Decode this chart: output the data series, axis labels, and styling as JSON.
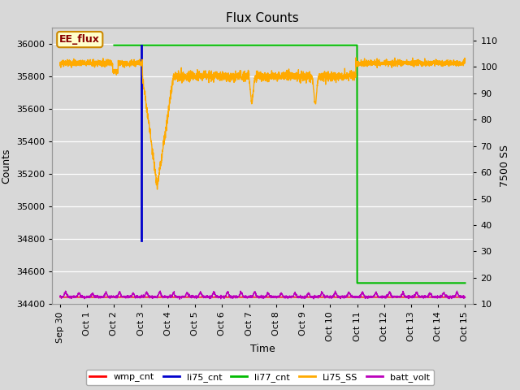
{
  "title": "Flux Counts",
  "xlabel": "Time",
  "ylabel_left": "Counts",
  "ylabel_right": "7500 SS",
  "annotation_text": "EE_flux",
  "annotation_bg": "#ffffcc",
  "annotation_border": "#cc8800",
  "annotation_text_color": "#880000",
  "xlim_days": [
    -0.3,
    15.3
  ],
  "ylim_left": [
    34400,
    36100
  ],
  "ylim_right": [
    10,
    115
  ],
  "yticks_left": [
    34400,
    34600,
    34800,
    35000,
    35200,
    35400,
    35600,
    35800,
    36000
  ],
  "yticks_right": [
    10,
    20,
    30,
    40,
    50,
    60,
    70,
    80,
    90,
    100,
    110
  ],
  "xtick_labels": [
    "Sep 30",
    "Oct 1",
    "Oct 2",
    "Oct 3",
    "Oct 4",
    "Oct 5",
    "Oct 6",
    "Oct 7",
    "Oct 8",
    "Oct 9",
    "Oct 10",
    "Oct 11",
    "Oct 12",
    "Oct 13",
    "Oct 14",
    "Oct 15"
  ],
  "xtick_positions": [
    0,
    1,
    2,
    3,
    4,
    5,
    6,
    7,
    8,
    9,
    10,
    11,
    12,
    13,
    14,
    15
  ],
  "fig_bg_color": "#d8d8d8",
  "plot_bg_color": "#d8d8d8",
  "grid_color": "#ffffff",
  "colors": {
    "wmp_cnt": "#ff0000",
    "li75_cnt": "#0000cc",
    "li77_cnt": "#00bb00",
    "Li75_SS": "#ffaa00",
    "batt_volt": "#bb00bb"
  },
  "legend_labels": [
    "wmp_cnt",
    "li75_cnt",
    "li77_cnt",
    "Li75_SS",
    "batt_volt"
  ]
}
